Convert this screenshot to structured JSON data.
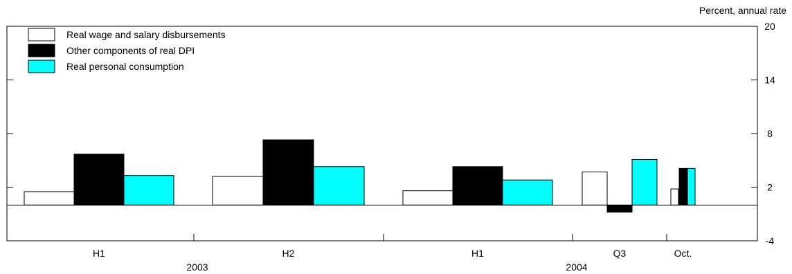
{
  "chart_data": {
    "type": "bar",
    "unit_label": "Percent, annual rate",
    "ylim": [
      -4,
      20
    ],
    "yticks": [
      -4,
      2,
      8,
      14,
      20
    ],
    "grid": false,
    "legend_position": "top-left",
    "series": [
      {
        "name": "Real wage and salary disbursements",
        "color": "#ffffff",
        "values": [
          1.5,
          3.2,
          1.6,
          3.7,
          1.8
        ]
      },
      {
        "name": "Other components of real DPI",
        "color": "#000000",
        "values": [
          5.7,
          7.3,
          4.3,
          -0.8,
          4.1
        ]
      },
      {
        "name": "Real personal consumption",
        "color": "#00ffff",
        "values": [
          3.3,
          4.3,
          2.8,
          5.1,
          4.1
        ]
      }
    ],
    "categories": [
      {
        "label": "H1",
        "year": "2003"
      },
      {
        "label": "H2",
        "year": "2003"
      },
      {
        "label": "H1",
        "year": "2004"
      },
      {
        "label": "Q3",
        "year": "2004"
      },
      {
        "label": "Oct.",
        "year": "2004"
      }
    ],
    "years": [
      "2003",
      "2004"
    ]
  }
}
